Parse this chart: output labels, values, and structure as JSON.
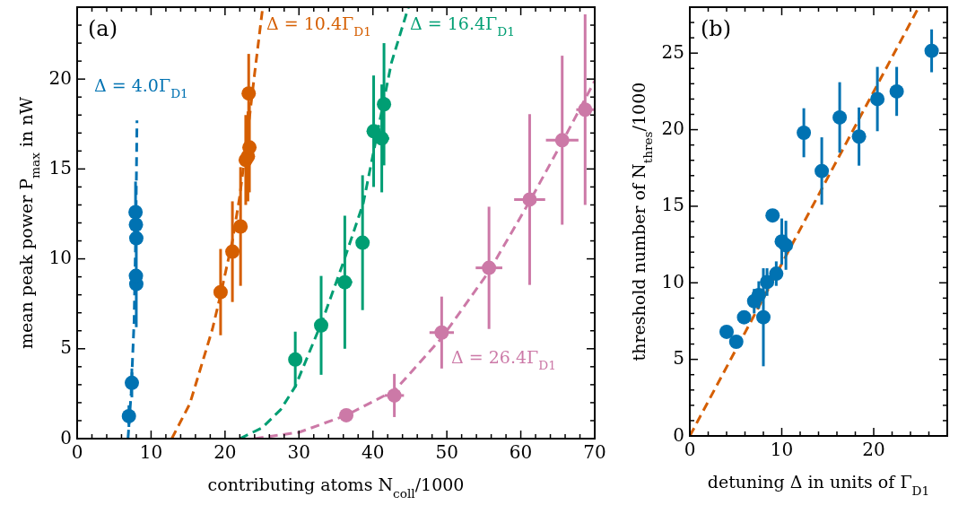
{
  "chart_data": [
    {
      "type": "scatter",
      "xlabel": "contributing atoms N$_{coll}$/1000",
      "ylabel": "mean peak power P$_{max}$ in nW",
      "xlim": [
        0,
        70
      ],
      "ylim": [
        0,
        24
      ],
      "xticks": [
        0,
        {
          "value": 2,
          "label": null
        },
        {
          "value": 4,
          "label": null
        },
        {
          "value": 6,
          "label": null
        },
        {
          "value": 8,
          "label": null
        },
        10,
        {
          "value": 12,
          "label": null
        },
        {
          "value": 14,
          "label": null
        },
        {
          "value": 16,
          "label": null
        },
        {
          "value": 18,
          "label": null
        },
        20,
        {
          "value": 22,
          "label": null
        },
        {
          "value": 24,
          "label": null
        },
        {
          "value": 26,
          "label": null
        },
        {
          "value": 28,
          "label": null
        },
        30,
        {
          "value": 32,
          "label": null
        },
        {
          "value": 34,
          "label": null
        },
        {
          "value": 36,
          "label": null
        },
        {
          "value": 38,
          "label": null
        },
        40,
        {
          "value": 42,
          "label": null
        },
        {
          "value": 44,
          "label": null
        },
        {
          "value": 46,
          "label": null
        },
        {
          "value": 48,
          "label": null
        },
        50,
        {
          "value": 52,
          "label": null
        },
        {
          "value": 54,
          "label": null
        },
        {
          "value": 56,
          "label": null
        },
        {
          "value": 58,
          "label": null
        },
        60,
        {
          "value": 62,
          "label": null
        },
        {
          "value": 64,
          "label": null
        },
        {
          "value": 66,
          "label": null
        },
        {
          "value": 68,
          "label": null
        },
        70
      ],
      "yticks": [
        0,
        {
          "value": 1,
          "label": null
        },
        {
          "value": 2,
          "label": null
        },
        {
          "value": 3,
          "label": null
        },
        {
          "value": 4,
          "label": null
        },
        5,
        {
          "value": 6,
          "label": null
        },
        {
          "value": 7,
          "label": null
        },
        {
          "value": 8,
          "label": null
        },
        {
          "value": 9,
          "label": null
        },
        10,
        {
          "value": 11,
          "label": null
        },
        {
          "value": 12,
          "label": null
        },
        {
          "value": 13,
          "label": null
        },
        {
          "value": 14,
          "label": null
        },
        15,
        {
          "value": 16,
          "label": null
        },
        {
          "value": 17,
          "label": null
        },
        {
          "value": 18,
          "label": null
        },
        {
          "value": 19,
          "label": null
        },
        20,
        {
          "value": 21,
          "label": null
        },
        {
          "value": 22,
          "label": null
        },
        {
          "value": 23,
          "label": null
        },
        {
          "value": 24,
          "label": null
        }
      ],
      "annotations": [
        "(a)"
      ],
      "series": [
        {
          "type": "line",
          "line_style": "dashed",
          "color": "#0072b2",
          "x": [
            6.88,
            7.3,
            7.7,
            7.95,
            8.09
          ],
          "values": [
            0,
            2.5,
            6.5,
            12,
            17.7
          ]
        },
        {
          "type": "line",
          "line_style": "dashed",
          "color": "#d55e00",
          "x": [
            12.8,
            15.25,
            18.3,
            19.4,
            21,
            22,
            23,
            24,
            25.1
          ],
          "values": [
            0,
            1.95,
            6.1,
            8,
            11,
            13.5,
            16.8,
            20.3,
            24
          ]
        },
        {
          "type": "line",
          "line_style": "dashed",
          "color": "#009e73",
          "x": [
            22,
            25,
            27.5,
            29.5,
            33.2,
            36,
            38.7,
            42.5,
            44.8
          ],
          "values": [
            0,
            0.6,
            1.6,
            2.9,
            6.6,
            9.8,
            13.1,
            20.9,
            24
          ]
        },
        {
          "type": "line",
          "line_style": "dashed",
          "color": "#cc79a7",
          "x": [
            24,
            30,
            36.4,
            43,
            49.3,
            55.7,
            61.2,
            65.6,
            70
          ],
          "values": [
            0,
            0.35,
            1.3,
            2.7,
            5.6,
            9.3,
            13.2,
            16.5,
            19.9
          ]
        },
        {
          "type": "scatter",
          "marker": "circle",
          "name": "Δ = 4.0Γ$_{D1}$",
          "color": "#0072b2",
          "x": [
            7.0,
            7.4,
            8.0,
            7.95,
            8.0,
            7.95,
            7.9
          ],
          "values": [
            1.25,
            3.1,
            8.6,
            9.05,
            11.15,
            11.9,
            12.6
          ],
          "errors": [
            0.6,
            0.8,
            2.4,
            null,
            null,
            null,
            1.7
          ]
        },
        {
          "type": "scatter",
          "marker": "circle",
          "name": "Δ = 10.4Γ$_{D1}$",
          "color": "#d55e00",
          "x": [
            19.4,
            21.0,
            22.1,
            22.8,
            23.1,
            23.3,
            23.2
          ],
          "values": [
            8.15,
            10.4,
            11.8,
            15.5,
            15.7,
            16.2,
            19.2
          ],
          "errors": [
            2.4,
            2.8,
            3.3,
            2.5,
            2.5,
            2.5,
            2.2
          ]
        },
        {
          "type": "scatter",
          "marker": "circle",
          "name": "Δ = 16.4Γ$_{D1}$",
          "color": "#009e73",
          "x": [
            29.5,
            33.0,
            36.2,
            38.6,
            40.1,
            41.2,
            41.5
          ],
          "values": [
            4.4,
            6.3,
            8.7,
            10.9,
            17.1,
            16.7,
            18.6
          ],
          "errors": [
            1.55,
            2.75,
            3.7,
            3.75,
            3.1,
            3.0,
            3.4
          ],
          "xerrors": [
            null,
            null,
            1.0,
            null,
            null,
            1.0,
            null
          ]
        },
        {
          "type": "scatter",
          "marker": "circle",
          "name": "Δ = 26.4Γ$_{D1}$",
          "color": "#cc79a7",
          "x": [
            36.4,
            42.9,
            49.3,
            55.7,
            61.2,
            65.6,
            68.7
          ],
          "values": [
            1.3,
            2.4,
            5.9,
            9.5,
            13.3,
            16.6,
            18.3
          ],
          "errors": [
            null,
            1.2,
            2.0,
            3.4,
            4.75,
            4.7,
            5.3
          ],
          "xerrors": [
            null,
            1.3,
            1.65,
            1.8,
            2.1,
            2.2,
            1.2
          ]
        }
      ]
    },
    {
      "type": "scatter",
      "xlabel": "detuning Δ in units of Γ$_{D1}$",
      "ylabel": "threshold number of N$_{thres}$/1000",
      "xlim": [
        0,
        28
      ],
      "ylim": [
        0,
        28
      ],
      "xticks": [
        0,
        {
          "value": 2,
          "label": null
        },
        {
          "value": 4,
          "label": null
        },
        {
          "value": 6,
          "label": null
        },
        {
          "value": 8,
          "label": null
        },
        10,
        {
          "value": 12,
          "label": null
        },
        {
          "value": 14,
          "label": null
        },
        {
          "value": 16,
          "label": null
        },
        {
          "value": 18,
          "label": null
        },
        20,
        {
          "value": 22,
          "label": null
        },
        {
          "value": 24,
          "label": null
        },
        {
          "value": 26,
          "label": null
        },
        {
          "value": 28,
          "label": null
        }
      ],
      "yticks": [
        0,
        {
          "value": 1,
          "label": null
        },
        {
          "value": 2,
          "label": null
        },
        {
          "value": 3,
          "label": null
        },
        {
          "value": 4,
          "label": null
        },
        5,
        {
          "value": 6,
          "label": null
        },
        {
          "value": 7,
          "label": null
        },
        {
          "value": 8,
          "label": null
        },
        {
          "value": 9,
          "label": null
        },
        10,
        {
          "value": 11,
          "label": null
        },
        {
          "value": 12,
          "label": null
        },
        {
          "value": 13,
          "label": null
        },
        {
          "value": 14,
          "label": null
        },
        15,
        {
          "value": 16,
          "label": null
        },
        {
          "value": 17,
          "label": null
        },
        {
          "value": 18,
          "label": null
        },
        {
          "value": 19,
          "label": null
        },
        20,
        {
          "value": 21,
          "label": null
        },
        {
          "value": 22,
          "label": null
        },
        {
          "value": 23,
          "label": null
        },
        {
          "value": 24,
          "label": null
        },
        25,
        {
          "value": 26,
          "label": null
        },
        {
          "value": 27,
          "label": null
        },
        {
          "value": 28,
          "label": null
        }
      ],
      "annotations": [
        "(b)"
      ],
      "series": [
        {
          "type": "line",
          "line_style": "dashed",
          "color": "#d55e00",
          "x": [
            0,
            24.9
          ],
          "values": [
            0,
            28
          ]
        },
        {
          "type": "scatter",
          "marker": "circle",
          "color": "#0072b2",
          "x": [
            4.0,
            5.05,
            5.9,
            7.0,
            7.5,
            8.0,
            8.4,
            9.0,
            9.4,
            10.0,
            10.45,
            12.4,
            14.35,
            16.3,
            18.4,
            20.4,
            22.5,
            26.3
          ],
          "values": [
            6.8,
            6.15,
            7.75,
            8.8,
            9.2,
            7.75,
            10.05,
            14.4,
            10.6,
            12.7,
            12.45,
            19.8,
            17.3,
            20.8,
            19.55,
            22.0,
            22.5,
            25.15
          ],
          "errors": [
            null,
            null,
            null,
            0.8,
            0.9,
            3.2,
            0.9,
            null,
            0.8,
            1.5,
            1.6,
            1.6,
            2.2,
            2.3,
            1.9,
            2.1,
            1.6,
            1.4
          ]
        }
      ]
    }
  ]
}
